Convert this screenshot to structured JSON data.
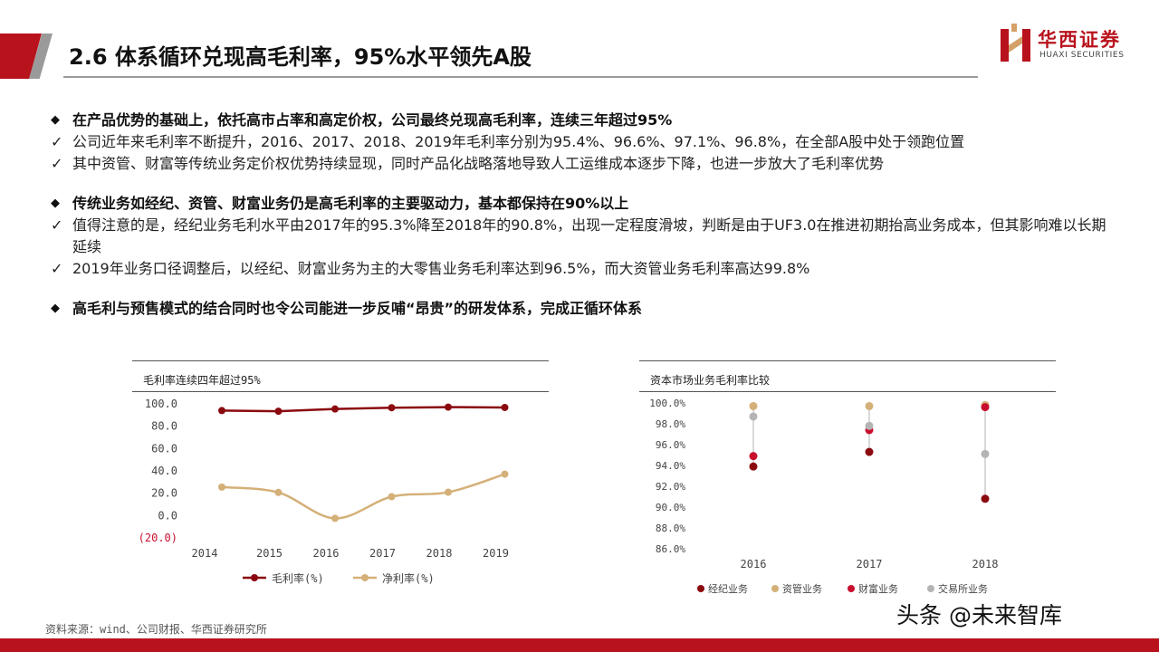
{
  "header": {
    "title": "2.6 体系循环兑现高毛利率，95%水平领先A股"
  },
  "logo": {
    "cn": "华西证券",
    "en": "HUAXI SECURITIES"
  },
  "bullets": [
    {
      "type": "main",
      "text": "在产品优势的基础上，依托高市占率和高定价权，公司最终兑现高毛利率，连续三年超过95%"
    },
    {
      "type": "sub",
      "text": "公司近年来毛利率不断提升，2016、2017、2018、2019年毛利率分别为95.4%、96.6%、97.1%、96.8%，在全部A股中处于领跑位置"
    },
    {
      "type": "sub",
      "text": "其中资管、财富等传统业务定价权优势持续显现，同时产品化战略落地导致人工运维成本逐步下降，也进一步放大了毛利率优势"
    },
    {
      "type": "main",
      "text": "传统业务如经纪、资管、财富业务仍是高毛利率的主要驱动力，基本都保持在90%以上"
    },
    {
      "type": "sub",
      "text": "值得注意的是，经纪业务毛利水平由2017年的95.3%降至2018年的90.8%，出现一定程度滑坡，判断是由于UF3.0在推进初期抬高业务成本，但其影响难以长期延续"
    },
    {
      "type": "sub",
      "text": "2019年业务口径调整后，以经纪、财富业务为主的大零售业务毛利率达到96.5%，而大资管业务毛利率高达99.8%"
    },
    {
      "type": "main",
      "text": "高毛利与预售模式的结合同时也令公司能进一步反哺“昂贵”的研发体系，完成正循环体系"
    }
  ],
  "source": "资料来源：wind、公司财报、华西证券研究所",
  "watermark": "头条 @未来智库",
  "chart_data": [
    {
      "type": "line",
      "title": "毛利率连续四年超过95%",
      "categories": [
        "2014",
        "2015",
        "2016",
        "2017",
        "2018",
        "2019"
      ],
      "ylim": [
        -20,
        100
      ],
      "yticks": [
        100,
        80,
        60,
        40,
        20,
        0,
        -20
      ],
      "ytick_labels": [
        "100.0",
        "80.0",
        "60.0",
        "40.0",
        "20.0",
        "0.0",
        "(20.0)"
      ],
      "series": [
        {
          "name": "毛利率(%)",
          "color": "#8b0a0f",
          "values": [
            94.0,
            93.4,
            95.4,
            96.6,
            97.1,
            96.8
          ]
        },
        {
          "name": "净利率(%)",
          "color": "#d4b078",
          "values": [
            25.5,
            20.7,
            -2.5,
            16.9,
            20.9,
            37.1
          ]
        }
      ],
      "legend": "bottom"
    },
    {
      "type": "scatter",
      "title": "资本市场业务毛利率比较",
      "categories": [
        "2016",
        "2017",
        "2018"
      ],
      "ylim": [
        86,
        100
      ],
      "yticks": [
        100,
        98,
        96,
        94,
        92,
        90,
        88,
        86
      ],
      "ytick_labels": [
        "100.0%",
        "98.0%",
        "96.0%",
        "94.0%",
        "92.0%",
        "90.0%",
        "88.0%",
        "86.0%"
      ],
      "series": [
        {
          "name": "经纪业务",
          "color": "#8b0a0f",
          "values": [
            93.9,
            95.3,
            90.8
          ]
        },
        {
          "name": "资管业务",
          "color": "#d4b078",
          "values": [
            99.7,
            99.7,
            99.8
          ]
        },
        {
          "name": "财富业务",
          "color": "#c8102e",
          "values": [
            94.9,
            97.4,
            99.6
          ]
        },
        {
          "name": "交易所业务",
          "color": "#b4b4b4",
          "values": [
            98.7,
            97.8,
            95.1
          ]
        }
      ],
      "legend": "bottom"
    }
  ]
}
